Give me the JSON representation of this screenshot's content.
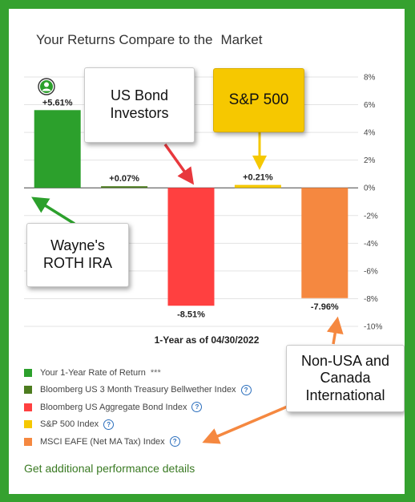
{
  "title": {
    "part1": "Your Returns Compare to the",
    "part2": "Market"
  },
  "chart_data": {
    "type": "bar",
    "caption": "1-Year as of 04/30/2022",
    "categories": [
      "Your 1-Year Rate of Return",
      "Bloomberg US 3 Month Treasury Bellwether Index",
      "Bloomberg US Aggregate Bond Index",
      "S&P 500 Index",
      "MSCI EAFE (Net MA Tax) Index"
    ],
    "values": [
      5.61,
      0.07,
      -8.51,
      0.21,
      -7.96
    ],
    "value_labels": [
      "+5.61%",
      "+0.07%",
      "-8.51%",
      "+0.21%",
      "-7.96%"
    ],
    "colors": [
      "#2ca02c",
      "#4d7c1f",
      "#ff4040",
      "#f5c800",
      "#f58840"
    ],
    "ylim": [
      -10,
      8
    ],
    "yticks": [
      8,
      6,
      4,
      2,
      0,
      -2,
      -4,
      -6,
      -8,
      -10
    ],
    "ytick_labels": [
      "8%",
      "6%",
      "4%",
      "2%",
      "0%",
      "-2%",
      "-4%",
      "-6%",
      "-8%",
      "-10%"
    ],
    "grid": true,
    "axis_side": "right"
  },
  "legend": {
    "items": [
      {
        "label": "Your 1-Year Rate of Return",
        "color": "#2ca02c",
        "suffix": "***",
        "info": false
      },
      {
        "label": "Bloomberg US 3 Month Treasury Bellwether Index",
        "color": "#4d7c1f",
        "suffix": "",
        "info": true
      },
      {
        "label": "Bloomberg US Aggregate Bond Index",
        "color": "#ff4040",
        "suffix": "",
        "info": true
      },
      {
        "label": "S&P 500 Index",
        "color": "#f5c800",
        "suffix": "",
        "info": true
      },
      {
        "label": "MSCI EAFE (Net MA Tax) Index",
        "color": "#f58840",
        "suffix": "",
        "info": true
      }
    ],
    "info_glyph": "?"
  },
  "link": {
    "label": "Get additional performance details"
  },
  "callouts": {
    "bond": [
      "US Bond",
      "Investors"
    ],
    "sp500": "S&P 500",
    "wayne": [
      "Wayne's",
      "ROTH IRA"
    ],
    "intl": [
      "Non-USA and",
      "Canada",
      "International"
    ]
  },
  "icons": {
    "avatar": "user-avatar-icon"
  },
  "colors": {
    "frame": "#35a12f",
    "arrow_green": "#2ca02c",
    "arrow_red": "#e8383d",
    "arrow_yellow": "#f5c800",
    "arrow_orange": "#f58840"
  }
}
